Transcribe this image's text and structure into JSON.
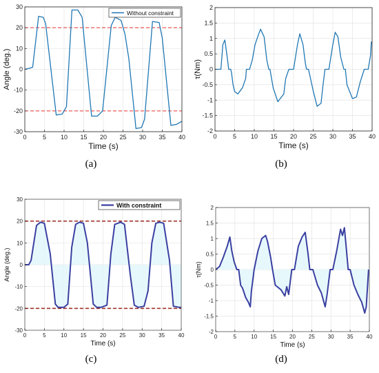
{
  "colors": {
    "series_top": "#1f77b4",
    "series_bottom": "#3a3fa0",
    "constraint_top": "#e8312a",
    "constraint_bottom": "#a0322a",
    "shade_bottom": "#e0f6fb"
  },
  "captions": [
    "(a)",
    "(b)",
    "(c)",
    "(d)"
  ],
  "chart_data": [
    {
      "id": "a",
      "type": "line",
      "title": "",
      "xlabel": "Time (s)",
      "ylabel": "Angle (deg.)",
      "xlim": [
        0,
        40
      ],
      "ylim": [
        -30,
        30
      ],
      "xticks": [
        0,
        5,
        10,
        15,
        20,
        25,
        30,
        35,
        40
      ],
      "yticks": [
        -30,
        -20,
        -10,
        0,
        10,
        20,
        30
      ],
      "grid": true,
      "legend": "top-right",
      "hlines": [
        20,
        -20
      ],
      "series": [
        {
          "name": "Without constraint",
          "x": [
            0,
            1.2,
            2.0,
            3.5,
            4.7,
            5.3,
            8.0,
            9.5,
            10.6,
            12.0,
            13.5,
            14.6,
            17.0,
            18.5,
            19.8,
            22.0,
            23.0,
            24.5,
            25.5,
            26.5,
            28.3,
            29.7,
            30.5,
            32.5,
            34.2,
            35.0,
            37.2,
            38.6,
            40.0
          ],
          "y": [
            0,
            0.5,
            1,
            25.5,
            25,
            22,
            -22,
            -21.5,
            -18,
            28.5,
            28.5,
            25,
            -22.5,
            -22.5,
            -20,
            21,
            25,
            23.5,
            17,
            5,
            -28.5,
            -28,
            -24,
            23,
            22.5,
            15,
            -27,
            -26.5,
            -25
          ]
        }
      ]
    },
    {
      "id": "b",
      "type": "line",
      "title": "",
      "xlabel": "Time (s)",
      "ylabel": "τ(Nm)",
      "xlim": [
        0,
        40
      ],
      "ylim": [
        -2,
        2
      ],
      "xticks": [
        0,
        5,
        10,
        15,
        20,
        25,
        30,
        35,
        40
      ],
      "yticks": [
        -2,
        -1.5,
        -1,
        -0.5,
        0,
        0.5,
        1,
        1.5,
        2
      ],
      "grid": true,
      "series": [
        {
          "name": "",
          "x": [
            0,
            1.5,
            2.0,
            2.5,
            3.0,
            3.5,
            4.0,
            4.2,
            4.6,
            5.0,
            5.8,
            7.0,
            7.8,
            8.0,
            8.8,
            9.5,
            10.2,
            11.0,
            11.6,
            12.5,
            13.2,
            13.7,
            14.0,
            14.8,
            16.0,
            17.5,
            18.0,
            18.8,
            20.0,
            21.0,
            21.6,
            22.4,
            23.0,
            23.3,
            23.8,
            25.0,
            26.0,
            27.0,
            27.5,
            28.0,
            29.0,
            30.0,
            30.6,
            31.3,
            32.0,
            32.8,
            33.2,
            33.6,
            35.0,
            36.0,
            37.0,
            38.0,
            39.0,
            39.6,
            39.8
          ],
          "y": [
            0,
            0,
            0.8,
            0.95,
            0.5,
            0,
            0,
            -0.1,
            -0.5,
            -0.72,
            -0.8,
            -0.6,
            -0.3,
            0,
            0,
            0.3,
            0.8,
            1.1,
            1.3,
            1.05,
            0.3,
            0,
            0,
            -0.6,
            -1.05,
            -0.8,
            -0.3,
            0,
            0,
            0.8,
            1.15,
            0.8,
            0.2,
            0,
            0,
            -0.7,
            -1.2,
            -1.1,
            -0.5,
            0,
            0,
            0.8,
            1.2,
            1.05,
            0.4,
            0,
            0,
            -0.5,
            -0.95,
            -0.9,
            -0.4,
            0,
            0,
            0.45,
            0.9
          ]
        }
      ]
    },
    {
      "id": "c",
      "type": "line",
      "title": "",
      "xlabel": "Time (s)",
      "ylabel": "Angle (deg.)",
      "xlim": [
        0,
        40
      ],
      "ylim": [
        -30,
        30
      ],
      "xticks": [
        0,
        5,
        10,
        15,
        20,
        25,
        30,
        35,
        40
      ],
      "yticks": [
        -30,
        -20,
        -10,
        0,
        10,
        20,
        30
      ],
      "grid": true,
      "legend": "top-right",
      "hlines": [
        20,
        -20
      ],
      "series": [
        {
          "name": "With constraint",
          "x": [
            0,
            1.0,
            1.6,
            3.0,
            4.0,
            5.0,
            6.5,
            7.8,
            8.5,
            10.0,
            11.0,
            12.0,
            13.0,
            14.0,
            15.0,
            16.0,
            17.5,
            18.4,
            19.5,
            21.0,
            22.0,
            23.0,
            24.5,
            25.5,
            27.0,
            28.0,
            29.0,
            30.5,
            31.5,
            32.5,
            33.5,
            34.5,
            35.5,
            37.0,
            38.0,
            39.5,
            40.0
          ],
          "y": [
            0,
            0,
            2,
            18,
            19.5,
            19,
            5,
            -18,
            -19.5,
            -19.5,
            -18,
            8,
            18.5,
            19.5,
            19,
            10,
            -18,
            -19.5,
            -19.5,
            -18.5,
            5,
            18.5,
            19.5,
            18.5,
            -5,
            -18.5,
            -19.5,
            -19,
            -12,
            10,
            19,
            19.5,
            19,
            2,
            -19,
            -19.5,
            -19.5
          ]
        }
      ]
    },
    {
      "id": "d",
      "type": "line",
      "title": "",
      "xlabel": "Time (s)",
      "ylabel": "τ(Nm)",
      "xlim": [
        0,
        40
      ],
      "ylim": [
        -2,
        2
      ],
      "xticks": [
        0,
        5,
        10,
        15,
        20,
        25,
        30,
        35,
        40
      ],
      "yticks": [
        -2,
        -1.5,
        -1,
        -0.5,
        0,
        0.5,
        1,
        1.5,
        2
      ],
      "grid": true,
      "series": [
        {
          "name": "",
          "x": [
            0,
            1.0,
            2.0,
            3.0,
            3.7,
            4.2,
            4.8,
            5.5,
            6.0,
            6.5,
            7.0,
            7.8,
            8.5,
            9.0,
            9.3,
            10.0,
            11.0,
            12.0,
            13.0,
            13.5,
            14.3,
            14.8,
            15.5,
            17.0,
            18.0,
            18.5,
            19.0,
            19.8,
            20.5,
            21.5,
            22.5,
            23.3,
            24.0,
            24.5,
            25.3,
            26.5,
            27.5,
            28.5,
            29.0,
            29.8,
            30.5,
            31.5,
            32.5,
            33.0,
            33.5,
            34.0,
            34.5,
            35.0,
            36.0,
            37.0,
            38.0,
            38.8,
            39.2,
            39.8
          ],
          "y": [
            0,
            0.1,
            0.4,
            0.75,
            1.05,
            0.6,
            0.25,
            0,
            0,
            -0.5,
            -0.6,
            -0.9,
            -1.05,
            -1.2,
            -0.7,
            0,
            0.6,
            1.0,
            1.1,
            0.9,
            0.4,
            0,
            -0.5,
            -0.65,
            -0.85,
            -0.55,
            -0.8,
            0,
            0,
            0.75,
            1.05,
            1.2,
            0.55,
            0,
            0,
            -0.5,
            -0.75,
            -1.2,
            -0.8,
            0,
            0,
            0.6,
            1.3,
            1.1,
            1.35,
            0.7,
            0,
            0,
            -0.5,
            -0.8,
            -1.05,
            -1.4,
            -1.2,
            0
          ]
        }
      ]
    }
  ]
}
